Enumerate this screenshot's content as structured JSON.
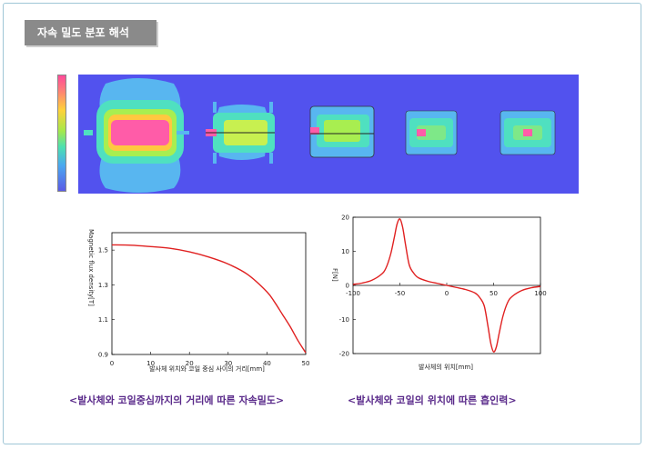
{
  "header": {
    "title": "자속 밀도 분포 해석"
  },
  "colorbar": {
    "colors": [
      "#ff4a9a",
      "#ffd23a",
      "#a6e84a",
      "#4ce0b0",
      "#4aa8f0",
      "#5a5ae6"
    ]
  },
  "captions": {
    "left": "<발사체와 코일중심까지의 거리에 따른 자속밀도>",
    "right": "<발사체와 코일의 위치에 따른 흡인력>"
  },
  "chart_data": [
    {
      "type": "line",
      "title": "",
      "xlabel": "발사체 위치와 코일 중심 사이의 거리[mm]",
      "ylabel": "Magnetic flux density[T]",
      "xlim": [
        0,
        50
      ],
      "ylim": [
        0.9,
        1.6
      ],
      "xticks": [
        0,
        10,
        20,
        30,
        40,
        50
      ],
      "yticks": [
        0.9,
        1.1,
        1.3,
        1.5
      ],
      "grid": false,
      "line_color": "#e02020",
      "x": [
        0,
        5,
        10,
        15,
        20,
        25,
        30,
        35,
        40,
        42,
        44,
        46,
        48,
        50
      ],
      "y": [
        1.53,
        1.528,
        1.52,
        1.51,
        1.49,
        1.46,
        1.42,
        1.36,
        1.26,
        1.2,
        1.13,
        1.06,
        0.98,
        0.91
      ]
    },
    {
      "type": "line",
      "title": "",
      "xlabel": "발사체의 위치[mm]",
      "ylabel": "F[N]",
      "xlim": [
        -100,
        100
      ],
      "ylim": [
        -20,
        20
      ],
      "xticks": [
        -100,
        -50,
        0,
        50,
        100
      ],
      "yticks": [
        -20,
        -10,
        0,
        10,
        20
      ],
      "grid": false,
      "line_color": "#e02020",
      "x": [
        -100,
        -90,
        -80,
        -70,
        -65,
        -60,
        -56,
        -53,
        -50,
        -47,
        -44,
        -40,
        -35,
        -30,
        -20,
        -10,
        0,
        10,
        20,
        30,
        35,
        40,
        44,
        47,
        50,
        53,
        56,
        60,
        65,
        70,
        80,
        90,
        100
      ],
      "y": [
        0.3,
        0.7,
        1.5,
        3.2,
        5,
        9,
        14,
        18,
        19.5,
        17,
        12,
        6,
        3.5,
        2.2,
        1.2,
        0.6,
        0,
        -0.6,
        -1.2,
        -2.2,
        -3.5,
        -6,
        -12,
        -17,
        -19.5,
        -18,
        -14,
        -9,
        -5,
        -3.2,
        -1.5,
        -0.7,
        -0.3
      ]
    }
  ]
}
